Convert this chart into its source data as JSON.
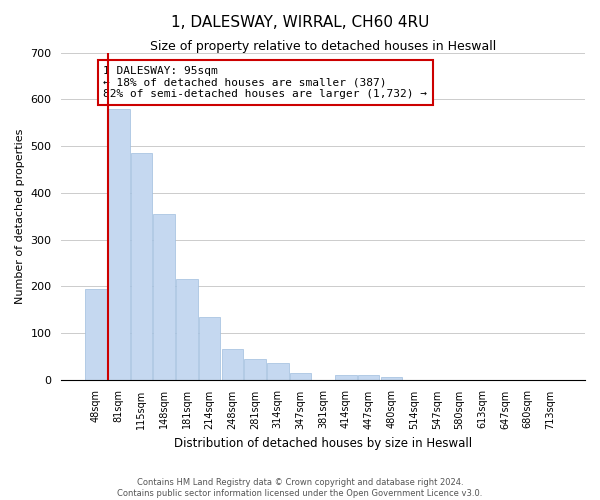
{
  "title": "1, DALESWAY, WIRRAL, CH60 4RU",
  "subtitle": "Size of property relative to detached houses in Heswall",
  "xlabel": "Distribution of detached houses by size in Heswall",
  "ylabel": "Number of detached properties",
  "bar_labels": [
    "48sqm",
    "81sqm",
    "115sqm",
    "148sqm",
    "181sqm",
    "214sqm",
    "248sqm",
    "281sqm",
    "314sqm",
    "347sqm",
    "381sqm",
    "414sqm",
    "447sqm",
    "480sqm",
    "514sqm",
    "547sqm",
    "580sqm",
    "613sqm",
    "647sqm",
    "680sqm",
    "713sqm"
  ],
  "bar_values": [
    195,
    580,
    485,
    355,
    215,
    135,
    65,
    45,
    35,
    15,
    0,
    10,
    10,
    5,
    0,
    0,
    0,
    0,
    0,
    0,
    0
  ],
  "bar_color": "#c5d8f0",
  "bar_edge_color": "#a0bede",
  "annotation_line1": "1 DALESWAY: 95sqm",
  "annotation_line2": "← 18% of detached houses are smaller (387)",
  "annotation_line3": "82% of semi-detached houses are larger (1,732) →",
  "vline_color": "#cc0000",
  "vline_x": 1.0,
  "ylim": [
    0,
    700
  ],
  "yticks": [
    0,
    100,
    200,
    300,
    400,
    500,
    600,
    700
  ],
  "footnote1": "Contains HM Land Registry data © Crown copyright and database right 2024.",
  "footnote2": "Contains public sector information licensed under the Open Government Licence v3.0.",
  "box_edge_color": "#cc0000",
  "background_color": "#ffffff",
  "grid_color": "#cccccc"
}
